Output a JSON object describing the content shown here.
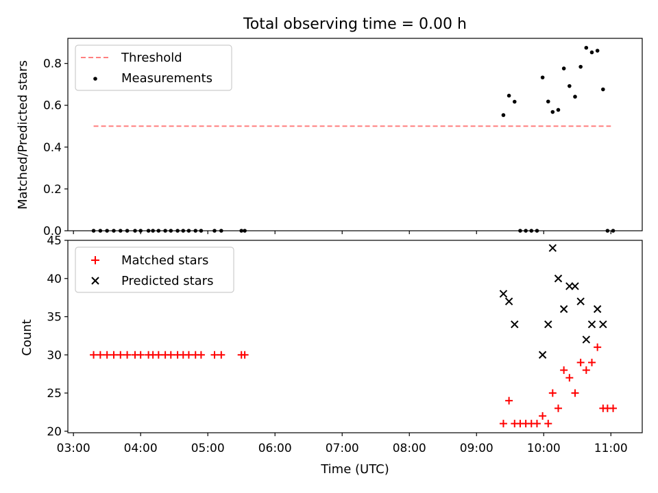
{
  "title": "Total observing time = 0.00 h",
  "xlabel": "Time (UTC)",
  "chart_data": [
    {
      "type": "scatter",
      "ylabel": "Matched/Predicted stars",
      "ylim": [
        0,
        0.92
      ],
      "yticks": [
        0.0,
        0.2,
        0.4,
        0.6,
        0.8
      ],
      "ytick_labels": [
        "0.0",
        "0.2",
        "0.4",
        "0.6",
        "0.8"
      ],
      "grid": false,
      "legend_position": "upper-left",
      "threshold": {
        "name": "Threshold",
        "value": 0.5,
        "x_start": "03:18",
        "x_end": "11:00",
        "color": "#ff7f7f"
      },
      "series": [
        {
          "name": "Measurements",
          "color": "#000000",
          "marker": "dot",
          "points": [
            [
              "03:18",
              0
            ],
            [
              "03:24",
              0
            ],
            [
              "03:30",
              0
            ],
            [
              "03:36",
              0
            ],
            [
              "03:42",
              0
            ],
            [
              "03:48",
              0
            ],
            [
              "03:55",
              0
            ],
            [
              "04:00",
              0
            ],
            [
              "04:07",
              0
            ],
            [
              "04:11",
              0
            ],
            [
              "04:16",
              0
            ],
            [
              "04:22",
              0
            ],
            [
              "04:27",
              0
            ],
            [
              "04:33",
              0
            ],
            [
              "04:38",
              0
            ],
            [
              "04:43",
              0
            ],
            [
              "04:49",
              0
            ],
            [
              "04:54",
              0
            ],
            [
              "05:06",
              0
            ],
            [
              "05:12",
              0
            ],
            [
              "05:30",
              0
            ],
            [
              "05:33",
              0
            ],
            [
              "09:24",
              0.553
            ],
            [
              "09:29",
              0.646
            ],
            [
              "09:34",
              0.617
            ],
            [
              "09:39",
              0
            ],
            [
              "09:44",
              0
            ],
            [
              "09:49",
              0
            ],
            [
              "09:54",
              0
            ],
            [
              "09:59",
              0.733
            ],
            [
              "10:04",
              0.618
            ],
            [
              "10:08",
              0.568
            ],
            [
              "10:13",
              0.578
            ],
            [
              "10:18",
              0.776
            ],
            [
              "10:23",
              0.692
            ],
            [
              "10:28",
              0.641
            ],
            [
              "10:33",
              0.784
            ],
            [
              "10:38",
              0.875
            ],
            [
              "10:43",
              0.853
            ],
            [
              "10:48",
              0.861
            ],
            [
              "10:53",
              0.676
            ],
            [
              "10:57",
              0
            ],
            [
              "11:02",
              0
            ]
          ]
        }
      ]
    },
    {
      "type": "scatter",
      "ylabel": "Count",
      "ylim": [
        19.8,
        45
      ],
      "yticks": [
        20,
        25,
        30,
        35,
        40,
        45
      ],
      "ytick_labels": [
        "20",
        "25",
        "30",
        "35",
        "40",
        "45"
      ],
      "grid": false,
      "legend_position": "upper-left",
      "series": [
        {
          "name": "Matched stars",
          "color": "#ff0000",
          "marker": "plus",
          "points": [
            [
              "03:18",
              30
            ],
            [
              "03:24",
              30
            ],
            [
              "03:30",
              30
            ],
            [
              "03:36",
              30
            ],
            [
              "03:42",
              30
            ],
            [
              "03:48",
              30
            ],
            [
              "03:55",
              30
            ],
            [
              "04:00",
              30
            ],
            [
              "04:07",
              30
            ],
            [
              "04:11",
              30
            ],
            [
              "04:16",
              30
            ],
            [
              "04:22",
              30
            ],
            [
              "04:27",
              30
            ],
            [
              "04:33",
              30
            ],
            [
              "04:38",
              30
            ],
            [
              "04:43",
              30
            ],
            [
              "04:49",
              30
            ],
            [
              "04:54",
              30
            ],
            [
              "05:06",
              30
            ],
            [
              "05:12",
              30
            ],
            [
              "05:30",
              30
            ],
            [
              "05:33",
              30
            ],
            [
              "09:24",
              21
            ],
            [
              "09:29",
              24
            ],
            [
              "09:34",
              21
            ],
            [
              "09:39",
              21
            ],
            [
              "09:44",
              21
            ],
            [
              "09:49",
              21
            ],
            [
              "09:54",
              21
            ],
            [
              "09:59",
              22
            ],
            [
              "10:04",
              21
            ],
            [
              "10:08",
              25
            ],
            [
              "10:13",
              23
            ],
            [
              "10:18",
              28
            ],
            [
              "10:23",
              27
            ],
            [
              "10:28",
              25
            ],
            [
              "10:33",
              29
            ],
            [
              "10:38",
              28
            ],
            [
              "10:43",
              29
            ],
            [
              "10:48",
              31
            ],
            [
              "10:53",
              23
            ],
            [
              "10:57",
              23
            ],
            [
              "11:02",
              23
            ]
          ]
        },
        {
          "name": "Predicted stars",
          "color": "#000000",
          "marker": "x",
          "points": [
            [
              "09:24",
              38
            ],
            [
              "09:29",
              37
            ],
            [
              "09:34",
              34
            ],
            [
              "09:59",
              30
            ],
            [
              "10:04",
              34
            ],
            [
              "10:08",
              44
            ],
            [
              "10:13",
              40
            ],
            [
              "10:18",
              36
            ],
            [
              "10:23",
              39
            ],
            [
              "10:28",
              39
            ],
            [
              "10:33",
              37
            ],
            [
              "10:38",
              32
            ],
            [
              "10:43",
              34
            ],
            [
              "10:48",
              36
            ],
            [
              "10:53",
              34
            ]
          ]
        }
      ]
    }
  ],
  "xaxis": {
    "range": [
      "02:55",
      "11:28"
    ],
    "ticks": [
      "03:00",
      "04:00",
      "05:00",
      "06:00",
      "07:00",
      "08:00",
      "09:00",
      "10:00",
      "11:00"
    ],
    "tick_labels": [
      "03:00",
      "04:00",
      "05:00",
      "06:00",
      "07:00",
      "08:00",
      "09:00",
      "10:00",
      "11:00"
    ]
  }
}
